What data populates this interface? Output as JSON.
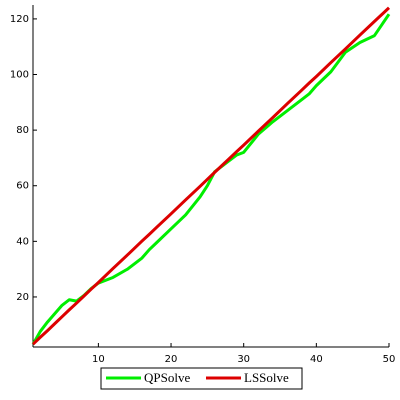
{
  "chart_data": {
    "type": "line",
    "x": [
      1,
      2,
      3,
      4,
      5,
      6,
      7,
      8,
      9,
      10,
      12,
      14,
      16,
      17,
      18,
      20,
      22,
      24,
      25,
      26,
      28,
      29,
      30,
      32,
      34,
      36,
      38,
      39,
      40,
      42,
      44,
      46,
      48,
      50
    ],
    "series": [
      {
        "name": "QPSolve",
        "color": "#00ee00",
        "values": [
          3,
          7.6,
          11,
          14,
          17,
          19,
          18.5,
          20.5,
          23,
          25,
          27,
          30,
          34,
          37,
          39.5,
          44.5,
          49.5,
          56,
          60,
          65,
          69,
          71,
          72,
          78.5,
          83,
          87,
          91,
          93,
          96,
          101,
          108,
          111.5,
          114,
          121.7
        ]
      },
      {
        "name": "LSSolve",
        "color": "#dd0000",
        "values": [
          3,
          5.5,
          7.9,
          10.4,
          12.9,
          15.4,
          17.8,
          20.3,
          22.8,
          25.2,
          30.2,
          35.1,
          40.1,
          42.5,
          45,
          49.9,
          54.9,
          59.8,
          62.3,
          64.8,
          69.7,
          72.2,
          74.6,
          79.6,
          84.5,
          89.5,
          94.4,
          96.9,
          99.3,
          104.3,
          109.2,
          114.2,
          119.1,
          124
        ]
      }
    ],
    "xlim": [
      1,
      50
    ],
    "xticks": [
      10,
      20,
      30,
      40,
      50
    ],
    "ylim": [
      2,
      125
    ],
    "yticks": [
      20,
      40,
      60,
      80,
      100,
      120
    ],
    "legend": "bottom"
  }
}
